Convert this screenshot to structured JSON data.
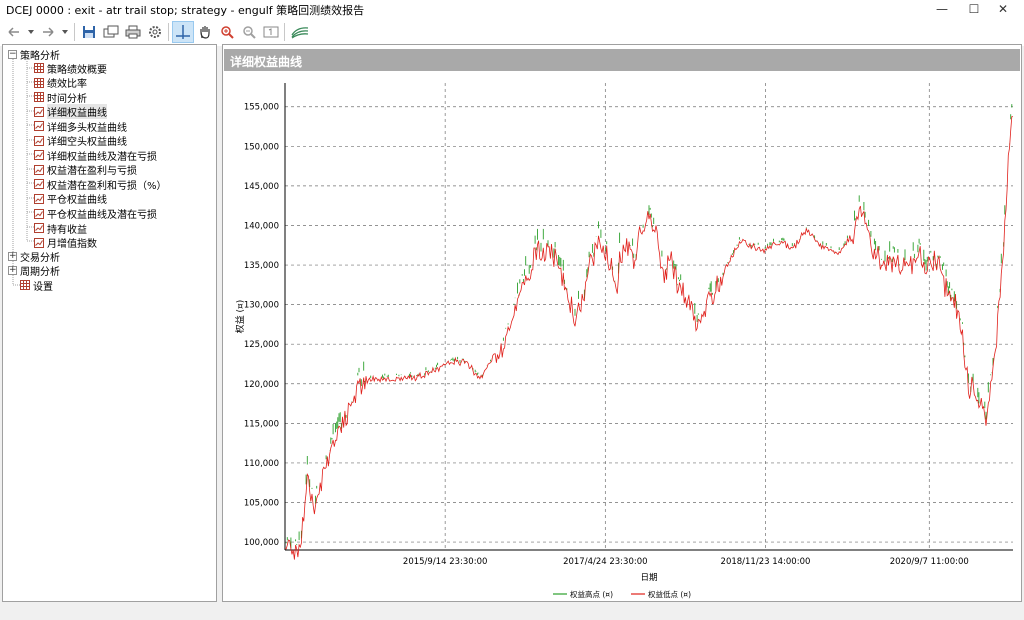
{
  "window": {
    "title": "DCEJ 0000 : exit - atr trail stop; strategy - engulf 策略回测绩效报告",
    "minimize_glyph": "—",
    "maximize_glyph": "☐",
    "close_glyph": "✕"
  },
  "toolbar": {
    "icons": [
      "back-icon",
      "dropdown-icon",
      "forward-icon",
      "dropdown-icon",
      "save-icon",
      "copy-icon",
      "print-icon",
      "gear-icon",
      "crosshair-icon",
      "hand-icon",
      "zoom-in-icon",
      "zoom-out-icon",
      "zoom-reset-icon",
      "signal-icon"
    ]
  },
  "tree": {
    "root1": "策略分析",
    "children": [
      "策略绩效概要",
      "绩效比率",
      "时间分析",
      "详细权益曲线",
      "详细多头权益曲线",
      "详细空头权益曲线",
      "详细权益曲线及潜在亏损",
      "权益潜在盈利与亏损",
      "权益潜在盈利和亏损（%）",
      "平仓权益曲线",
      "平仓权益曲线及潜在亏损",
      "持有收益",
      "月增值指数"
    ],
    "selected_index": 3,
    "root2": "交易分析",
    "root3": "周期分析",
    "root4": "设置"
  },
  "panel": {
    "title": "详细权益曲线"
  },
  "chart_data": {
    "type": "line",
    "ylabel": "权益 (¤)",
    "xlabel": "日期",
    "y_ticks": [
      "100,000",
      "105,000",
      "110,000",
      "115,000",
      "120,000",
      "125,000",
      "130,000",
      "135,000",
      "140,000",
      "145,000",
      "150,000",
      "155,000"
    ],
    "ylim": [
      99000,
      158000
    ],
    "x_ticks": [
      "2015/9/14 23:30:00",
      "2017/4/24 23:30:00",
      "2018/11/23 14:00:00",
      "2020/9/7 11:00:00"
    ],
    "grid": true,
    "legend_position": "bottom-center",
    "colors": {
      "high": "#2ca02c",
      "low": "#e0201b"
    },
    "series": [
      {
        "name": "权益高点 (¤)"
      },
      {
        "name": "权益低点 (¤)"
      }
    ],
    "equity_curve_approx": [
      [
        0,
        100000
      ],
      [
        0.02,
        100000
      ],
      [
        0.025,
        103000
      ],
      [
        0.03,
        109000
      ],
      [
        0.04,
        105500
      ],
      [
        0.05,
        108000
      ],
      [
        0.06,
        112000
      ],
      [
        0.075,
        115000
      ],
      [
        0.09,
        117500
      ],
      [
        0.1,
        120500
      ],
      [
        0.115,
        120800
      ],
      [
        0.15,
        120800
      ],
      [
        0.17,
        121000
      ],
      [
        0.2,
        121500
      ],
      [
        0.22,
        122800
      ],
      [
        0.25,
        123000
      ],
      [
        0.26,
        121500
      ],
      [
        0.27,
        121000
      ],
      [
        0.29,
        124000
      ],
      [
        0.3,
        125500
      ],
      [
        0.31,
        128500
      ],
      [
        0.32,
        131000
      ],
      [
        0.33,
        134000
      ],
      [
        0.34,
        136000
      ],
      [
        0.35,
        137500
      ],
      [
        0.365,
        137500
      ],
      [
        0.38,
        134000
      ],
      [
        0.39,
        131000
      ],
      [
        0.4,
        129000
      ],
      [
        0.41,
        131000
      ],
      [
        0.42,
        136000
      ],
      [
        0.43,
        138500
      ],
      [
        0.44,
        138000
      ],
      [
        0.45,
        135000
      ],
      [
        0.455,
        131000
      ],
      [
        0.46,
        137000
      ],
      [
        0.47,
        138500
      ],
      [
        0.48,
        136000
      ],
      [
        0.49,
        140000
      ],
      [
        0.5,
        141500
      ],
      [
        0.51,
        140000
      ],
      [
        0.515,
        136000
      ],
      [
        0.52,
        134000
      ],
      [
        0.53,
        137000
      ],
      [
        0.54,
        133000
      ],
      [
        0.55,
        131000
      ],
      [
        0.56,
        129500
      ],
      [
        0.565,
        127000
      ],
      [
        0.57,
        128500
      ],
      [
        0.58,
        131000
      ],
      [
        0.6,
        133500
      ],
      [
        0.61,
        135500
      ],
      [
        0.62,
        137500
      ],
      [
        0.63,
        138500
      ],
      [
        0.64,
        137500
      ],
      [
        0.66,
        137000
      ],
      [
        0.67,
        138000
      ],
      [
        0.68,
        138000
      ],
      [
        0.7,
        137500
      ],
      [
        0.71,
        139000
      ],
      [
        0.72,
        139500
      ],
      [
        0.73,
        138000
      ],
      [
        0.74,
        137500
      ],
      [
        0.75,
        137000
      ],
      [
        0.76,
        136500
      ],
      [
        0.77,
        138000
      ],
      [
        0.78,
        139000
      ],
      [
        0.79,
        143000
      ],
      [
        0.8,
        141000
      ],
      [
        0.81,
        137500
      ],
      [
        0.82,
        136000
      ],
      [
        0.83,
        136500
      ],
      [
        0.84,
        136000
      ],
      [
        0.85,
        135500
      ],
      [
        0.86,
        136000
      ],
      [
        0.87,
        137000
      ],
      [
        0.88,
        135000
      ],
      [
        0.89,
        136000
      ],
      [
        0.9,
        135500
      ],
      [
        0.91,
        132000
      ],
      [
        0.92,
        131000
      ],
      [
        0.925,
        130000
      ],
      [
        0.93,
        128000
      ],
      [
        0.935,
        123000
      ],
      [
        0.94,
        119000
      ],
      [
        0.945,
        121000
      ],
      [
        0.95,
        118000
      ],
      [
        0.955,
        119000
      ],
      [
        0.96,
        117500
      ],
      [
        0.963,
        116500
      ],
      [
        0.967,
        119000
      ],
      [
        0.97,
        121000
      ],
      [
        0.975,
        124500
      ],
      [
        0.98,
        130000
      ],
      [
        0.985,
        136000
      ],
      [
        0.99,
        142000
      ],
      [
        0.995,
        151000
      ],
      [
        0.998,
        155000
      ],
      [
        1.0,
        155500
      ]
    ]
  },
  "statusbar": {
    "text": ""
  }
}
